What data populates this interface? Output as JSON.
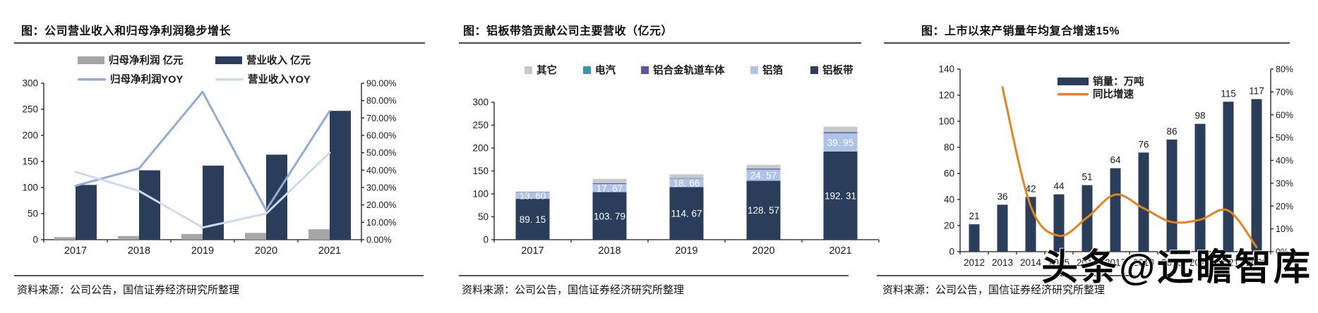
{
  "watermark": {
    "text": "头条@远瞻智库"
  },
  "panels": [
    {
      "title": "图：公司营业收入和归母净利润稳步增长",
      "source": "资料来源：公司公告，国信证券经济研究所整理"
    },
    {
      "title": "图：铝板带箔贡献公司主要营收（亿元）",
      "source": "资料来源：公司公告，国信证券经济研究所整理"
    },
    {
      "title": "图：上市以来产销量年均复合增速15%",
      "source": "资料来源：公司公告，国信证券经济研究所整理"
    }
  ],
  "colors": {
    "navy": "#2A3E5C",
    "gray_bar": "#A6A6A6",
    "profit_yoy_line": "#93ACD7",
    "revenue_yoy_line": "#CDD9EE",
    "other_gray": "#C9C9C9",
    "electric_teal": "#3E93B0",
    "rail_purple": "#5B57A0",
    "foil_blue": "#AEC3E7",
    "growth_orange": "#E8821F",
    "axis": "#1a1a1a"
  },
  "chart_data": [
    {
      "type": "bar",
      "subtype": "combo-bar-line",
      "categories": [
        "2017",
        "2018",
        "2019",
        "2020",
        "2021"
      ],
      "series": [
        {
          "name": "归母净利润 亿元",
          "kind": "bar",
          "axis": "left",
          "color": "#A6A6A6",
          "values": [
            5,
            7,
            11,
            13,
            20
          ]
        },
        {
          "name": "营业收入 亿元",
          "kind": "bar",
          "axis": "left",
          "color": "#2A3E5C",
          "values": [
            105,
            133,
            142,
            163,
            247
          ]
        },
        {
          "name": "归母净利润YOY",
          "kind": "line",
          "axis": "right",
          "color": "#93ACD7",
          "values": [
            31,
            41,
            85,
            17,
            74
          ]
        },
        {
          "name": "营业收入YOY",
          "kind": "line",
          "axis": "right",
          "color": "#CDD9EE",
          "values": [
            39,
            28,
            7,
            15,
            50
          ]
        }
      ],
      "left_axis": {
        "min": 0,
        "max": 300,
        "ticks": [
          "0",
          "50",
          "100",
          "150",
          "200",
          "250",
          "300"
        ]
      },
      "right_axis": {
        "min": 0,
        "max": 90,
        "ticks": [
          "0.00%",
          "10.00%",
          "20.00%",
          "30.00%",
          "40.00%",
          "50.00%",
          "60.00%",
          "70.00%",
          "80.00%",
          "90.00%"
        ]
      },
      "legend_position": "top-two-rows",
      "grid": false
    },
    {
      "type": "bar",
      "subtype": "stacked-bar",
      "categories": [
        "2017",
        "2018",
        "2019",
        "2020",
        "2021"
      ],
      "series": [
        {
          "name": "铝板带",
          "kind": "bar",
          "color": "#2A3E5C",
          "values": [
            89.15,
            103.79,
            114.67,
            128.57,
            192.31
          ],
          "labels": [
            "89. 15",
            "103. 79",
            "114. 67",
            "128. 57",
            "192. 31"
          ]
        },
        {
          "name": "铝箔",
          "kind": "bar",
          "color": "#AEC3E7",
          "values": [
            13.6,
            17.67,
            18.66,
            24.57,
            39.95
          ],
          "labels": [
            "13. 60",
            "17. 67",
            "18. 66",
            "24. 57",
            "39. 95"
          ]
        },
        {
          "name": "铝合金轨道车体",
          "kind": "bar",
          "color": "#5B57A0",
          "values": [
            0.8,
            1.6,
            0.9,
            1.8,
            2.0
          ]
        },
        {
          "name": "电汽",
          "kind": "bar",
          "color": "#3E93B0",
          "values": [
            0.3,
            0.4,
            0.4,
            0.5,
            1.0
          ]
        },
        {
          "name": "其它",
          "kind": "bar",
          "color": "#C9C9C9",
          "values": [
            1.5,
            9.5,
            8.0,
            8.0,
            11.5
          ]
        }
      ],
      "legend_order": [
        "其它",
        "电汽",
        "铝合金轨道车体",
        "铝箔",
        "铝板带"
      ],
      "left_axis": {
        "min": 0,
        "max": 300,
        "ticks": [
          "0",
          "50",
          "100",
          "150",
          "200",
          "250",
          "300"
        ]
      },
      "legend_position": "top-row",
      "grid": false
    },
    {
      "type": "bar",
      "subtype": "combo-bar-line",
      "categories": [
        "2012",
        "2013",
        "2014",
        "2015",
        "2016",
        "2017",
        "2018",
        "2019",
        "2020",
        "2021",
        "2022"
      ],
      "series": [
        {
          "name": "销量：万吨",
          "kind": "bar",
          "axis": "left",
          "color": "#2A3E5C",
          "values": [
            21,
            36,
            42,
            44,
            51,
            64,
            76,
            86,
            98,
            115,
            117
          ],
          "labels": [
            "21",
            "36",
            "42",
            "44",
            "51",
            "64",
            "76",
            "86",
            "98",
            "115",
            "117"
          ]
        },
        {
          "name": "同比增速",
          "kind": "line",
          "axis": "right",
          "color": "#E8821F",
          "smooth": true,
          "values": [
            null,
            72,
            20,
            7,
            15,
            25,
            19,
            13,
            14,
            18,
            2
          ]
        }
      ],
      "left_axis": {
        "min": 0,
        "max": 140,
        "ticks": [
          "0",
          "20",
          "40",
          "60",
          "80",
          "100",
          "120",
          "140"
        ]
      },
      "right_axis": {
        "min": 0,
        "max": 80,
        "ticks": [
          "0%",
          "10%",
          "20%",
          "30%",
          "40%",
          "50%",
          "60%",
          "70%",
          "80%"
        ]
      },
      "legend_position": "inset-right",
      "grid": false
    }
  ]
}
